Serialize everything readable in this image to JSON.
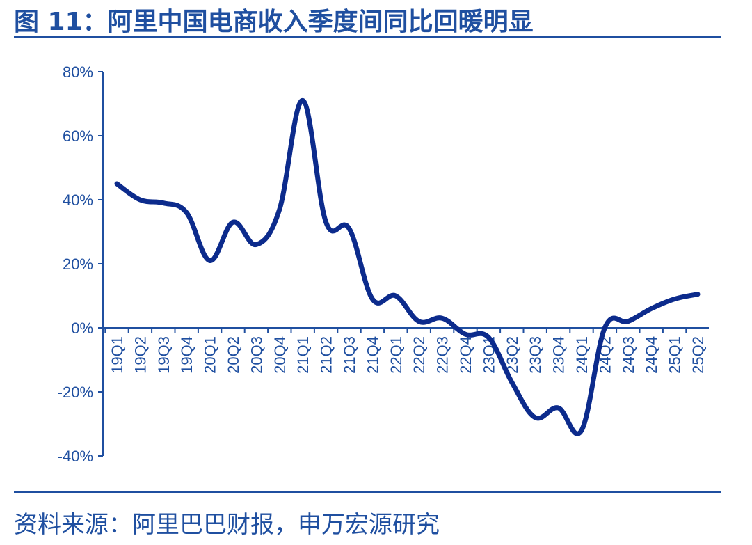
{
  "title": "图 11：阿里中国电商收入季度间同比回暖明显",
  "source": "资料来源：阿里巴巴财报，申万宏源研究",
  "colors": {
    "accent": "#1f4fa0",
    "line": "#0c2b8c"
  },
  "chart_data": {
    "type": "line",
    "categories": [
      "19Q1",
      "19Q2",
      "19Q3",
      "19Q4",
      "20Q1",
      "20Q2",
      "20Q3",
      "20Q4",
      "21Q1",
      "21Q2",
      "21Q3",
      "21Q4",
      "22Q1",
      "22Q2",
      "22Q3",
      "22Q4",
      "23Q1",
      "23Q2",
      "23Q3",
      "23Q4",
      "24Q1",
      "24Q2",
      "24Q3",
      "24Q4",
      "25Q1",
      "25Q2"
    ],
    "series": [
      {
        "values": [
          45,
          40,
          39,
          36,
          21,
          33,
          26,
          37,
          71,
          33,
          31,
          9,
          10,
          2,
          3,
          -2,
          -3,
          -17,
          -28,
          -25,
          -32,
          0,
          2,
          6,
          9,
          10.5
        ]
      }
    ],
    "yticks": [
      "80%",
      "60%",
      "40%",
      "20%",
      "0%",
      "-20%",
      "-40%"
    ],
    "ylim": [
      -40,
      80
    ],
    "grid": false,
    "legend": "none"
  }
}
